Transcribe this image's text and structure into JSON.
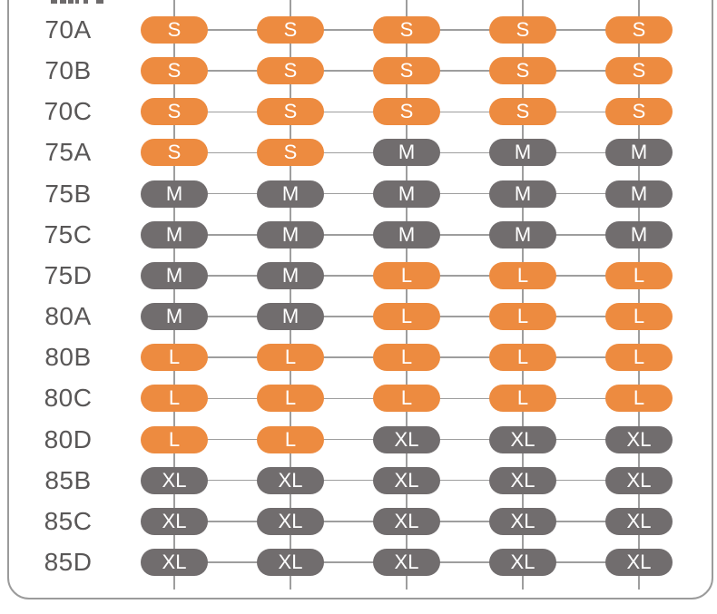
{
  "chart_data": {
    "type": "table",
    "title": "",
    "description": "Bra band/cup size to garment size (S/M/L/XL) mapping grid; column headers cropped out of frame",
    "row_labels": [
      "70A",
      "70B",
      "70C",
      "75A",
      "75B",
      "75C",
      "75D",
      "80A",
      "80B",
      "80C",
      "80D",
      "85B",
      "85C",
      "85D"
    ],
    "columns": 5,
    "matrix": [
      [
        "S",
        "S",
        "S",
        "S",
        "S"
      ],
      [
        "S",
        "S",
        "S",
        "S",
        "S"
      ],
      [
        "S",
        "S",
        "S",
        "S",
        "S"
      ],
      [
        "S",
        "S",
        "M",
        "M",
        "M"
      ],
      [
        "M",
        "M",
        "M",
        "M",
        "M"
      ],
      [
        "M",
        "M",
        "M",
        "M",
        "M"
      ],
      [
        "M",
        "M",
        "L",
        "L",
        "L"
      ],
      [
        "M",
        "M",
        "L",
        "L",
        "L"
      ],
      [
        "L",
        "L",
        "L",
        "L",
        "L"
      ],
      [
        "L",
        "L",
        "L",
        "L",
        "L"
      ],
      [
        "L",
        "L",
        "XL",
        "XL",
        "XL"
      ],
      [
        "XL",
        "XL",
        "XL",
        "XL",
        "XL"
      ],
      [
        "XL",
        "XL",
        "XL",
        "XL",
        "XL"
      ],
      [
        "XL",
        "XL",
        "XL",
        "XL",
        "XL"
      ]
    ],
    "size_colors": {
      "S": "#ED8B40",
      "M": "#716D6E",
      "L": "#ED8B40",
      "XL": "#716D6E"
    },
    "legend_position": "none",
    "grid": true
  },
  "colors": {
    "accent_orange": "#ED8B40",
    "neutral_gray": "#716D6E",
    "line_gray": "#9E9E9E",
    "border_gray": "#9B9B9B",
    "label_text": "#595757",
    "pill_text": "#FFFFFF",
    "background": "#FFFFFF"
  }
}
